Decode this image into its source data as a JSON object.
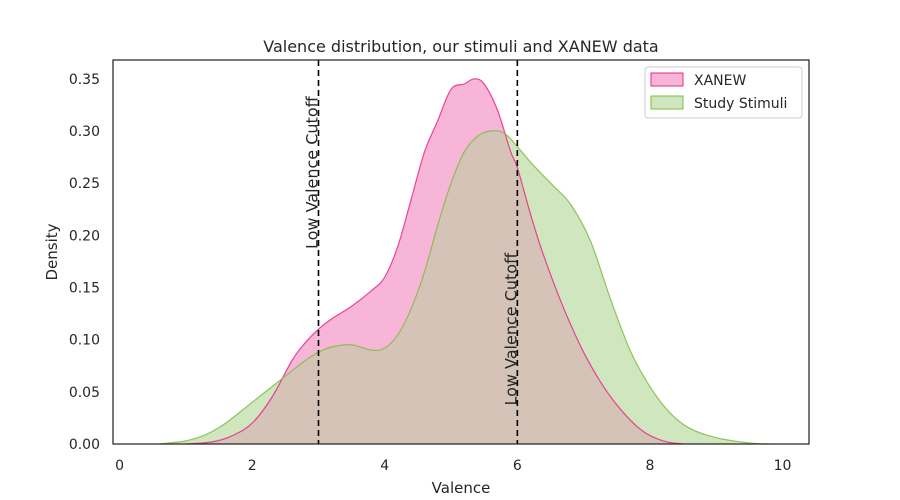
{
  "chart_data": {
    "type": "area",
    "title": "Valence distribution, our stimuli and XANEW data",
    "xlabel": "Valence",
    "ylabel": "Density",
    "xlim": [
      -0.1,
      10.4
    ],
    "ylim": [
      0,
      0.368
    ],
    "xticks": [
      0,
      2,
      4,
      6,
      8,
      10
    ],
    "yticks": [
      0.0,
      0.05,
      0.1,
      0.15,
      0.2,
      0.25,
      0.3,
      0.35
    ],
    "xtick_labels": [
      "0",
      "2",
      "4",
      "6",
      "8",
      "10"
    ],
    "ytick_labels": [
      "0.00",
      "0.05",
      "0.10",
      "0.15",
      "0.20",
      "0.25",
      "0.30",
      "0.35"
    ],
    "grid": false,
    "legend_position": "top-right",
    "series": [
      {
        "name": "XANEW",
        "color": "#e7298a",
        "fill": "#f7b6d8",
        "x": [
          1.0,
          1.4,
          1.7,
          2.0,
          2.3,
          2.6,
          2.8,
          3.0,
          3.2,
          3.5,
          3.8,
          4.0,
          4.2,
          4.4,
          4.6,
          4.8,
          5.0,
          5.2,
          5.35,
          5.5,
          5.7,
          5.9,
          6.0,
          6.2,
          6.4,
          6.7,
          7.0,
          7.3,
          7.6,
          7.9,
          8.2,
          8.5
        ],
        "values": [
          0.0,
          0.002,
          0.008,
          0.02,
          0.045,
          0.08,
          0.097,
          0.11,
          0.12,
          0.132,
          0.147,
          0.16,
          0.19,
          0.235,
          0.28,
          0.31,
          0.34,
          0.345,
          0.35,
          0.345,
          0.32,
          0.28,
          0.265,
          0.22,
          0.18,
          0.13,
          0.088,
          0.055,
          0.03,
          0.012,
          0.003,
          0.0
        ]
      },
      {
        "name": "Study Stimuli",
        "color": "#7fbc41",
        "fill": "#d0e6bf",
        "x": [
          0.6,
          1.0,
          1.3,
          1.6,
          2.0,
          2.4,
          2.8,
          3.0,
          3.2,
          3.5,
          3.8,
          4.0,
          4.2,
          4.4,
          4.6,
          4.8,
          5.0,
          5.2,
          5.4,
          5.6,
          5.8,
          6.0,
          6.2,
          6.5,
          6.8,
          7.1,
          7.4,
          7.7,
          8.0,
          8.3,
          8.6,
          9.0,
          9.5,
          9.8
        ],
        "values": [
          0.0,
          0.003,
          0.009,
          0.02,
          0.04,
          0.06,
          0.08,
          0.088,
          0.093,
          0.095,
          0.09,
          0.092,
          0.105,
          0.13,
          0.165,
          0.21,
          0.25,
          0.28,
          0.295,
          0.3,
          0.298,
          0.285,
          0.27,
          0.25,
          0.23,
          0.195,
          0.14,
          0.09,
          0.055,
          0.03,
          0.015,
          0.006,
          0.001,
          0.0
        ]
      }
    ],
    "overlap_fill": "#d4c3b6",
    "vlines": [
      {
        "x": 3,
        "label": "Low Valence Cutoff",
        "label_y": 0.26
      },
      {
        "x": 6,
        "label": "Low Valence Cutoff",
        "label_y": 0.11
      }
    ]
  }
}
